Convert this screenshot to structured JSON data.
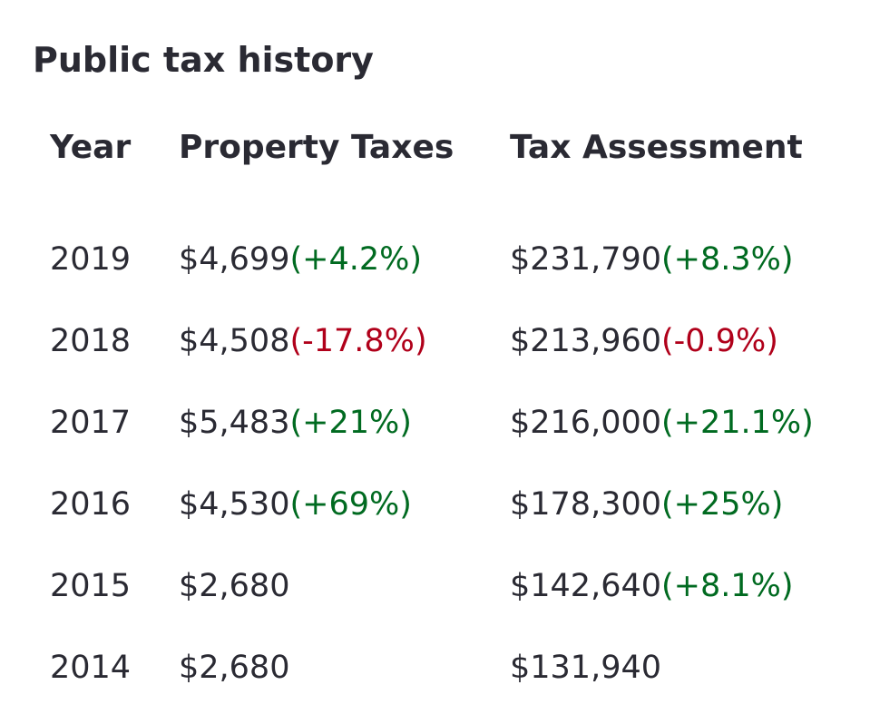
{
  "title": "Public tax history",
  "columns": {
    "year": "Year",
    "property_taxes": "Property Taxes",
    "tax_assessment": "Tax Assessment"
  },
  "rows": [
    {
      "year": "2019",
      "property_taxes": "$4,699",
      "property_taxes_change": "(+4.2%)",
      "property_taxes_trend": "up",
      "tax_assessment": "$231,790",
      "tax_assessment_change": "(+8.3%)",
      "tax_assessment_trend": "up"
    },
    {
      "year": "2018",
      "property_taxes": "$4,508",
      "property_taxes_change": "(-17.8%)",
      "property_taxes_trend": "down",
      "tax_assessment": "$213,960",
      "tax_assessment_change": "(-0.9%)",
      "tax_assessment_trend": "down"
    },
    {
      "year": "2017",
      "property_taxes": "$5,483",
      "property_taxes_change": "(+21%)",
      "property_taxes_trend": "up",
      "tax_assessment": "$216,000",
      "tax_assessment_change": "(+21.1%)",
      "tax_assessment_trend": "up"
    },
    {
      "year": "2016",
      "property_taxes": "$4,530",
      "property_taxes_change": "(+69%)",
      "property_taxes_trend": "up",
      "tax_assessment": "$178,300",
      "tax_assessment_change": "(+25%)",
      "tax_assessment_trend": "up"
    },
    {
      "year": "2015",
      "property_taxes": "$2,680",
      "property_taxes_change": "",
      "property_taxes_trend": "",
      "tax_assessment": "$142,640",
      "tax_assessment_change": "(+8.1%)",
      "tax_assessment_trend": "up"
    },
    {
      "year": "2014",
      "property_taxes": "$2,680",
      "property_taxes_change": "",
      "property_taxes_trend": "",
      "tax_assessment": "$131,940",
      "tax_assessment_change": "",
      "tax_assessment_trend": ""
    }
  ],
  "colors": {
    "text": "#2a2a33",
    "increase": "#006a20",
    "decrease": "#b0001a"
  }
}
